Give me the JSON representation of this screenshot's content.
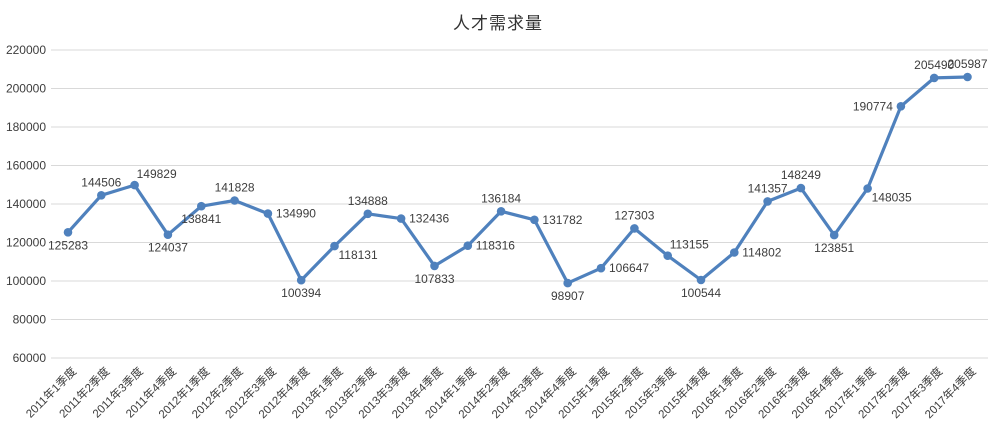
{
  "chart_data": {
    "type": "line",
    "title": "人才需求量",
    "xlabel": "",
    "ylabel": "",
    "legend": "none",
    "grid": "horizontal",
    "x_tick_rotation": -45,
    "ylim": [
      60000,
      220000
    ],
    "ytick_interval": 20000,
    "ytick_labels": [
      "60000",
      "80000",
      "100000",
      "120000",
      "140000",
      "160000",
      "180000",
      "200000",
      "220000"
    ],
    "categories": [
      "2011年1季度",
      "2011年2季度",
      "2011年3季度",
      "2011年4季度",
      "2012年1季度",
      "2012年2季度",
      "2012年3季度",
      "2012年4季度",
      "2013年1季度",
      "2013年2季度",
      "2013年3季度",
      "2013年4季度",
      "2014年1季度",
      "2014年2季度",
      "2014年3季度",
      "2014年4季度",
      "2015年1季度",
      "2015年2季度",
      "2015年3季度",
      "2015年4季度",
      "2016年1季度",
      "2016年2季度",
      "2016年3季度",
      "2016年4季度",
      "2017年1季度",
      "2017年2季度",
      "2017年3季度",
      "2017年4季度"
    ],
    "series": [
      {
        "values": [
          125283,
          144506,
          149829,
          124037,
          138841,
          141828,
          134990,
          100394,
          118131,
          134888,
          132436,
          107833,
          118316,
          136184,
          131782,
          98907,
          106647,
          127303,
          113155,
          100544,
          114802,
          141357,
          148249,
          123851,
          148035,
          190774,
          205490,
          205987
        ],
        "data_label_positions": [
          "below",
          "above",
          "above-right",
          "below",
          "below",
          "above",
          "right",
          "below",
          "below-right",
          "above",
          "right",
          "below",
          "right",
          "above",
          "right",
          "below",
          "right",
          "above",
          "above-right",
          "below",
          "right",
          "above",
          "above",
          "below",
          "below-right",
          "left",
          "above",
          "above"
        ],
        "marker": "circle"
      }
    ],
    "colors": {
      "line": "#4F81BD",
      "marker": "#4F81BD",
      "grid": "#D9D9D9",
      "axis_text": "#3D3D3D",
      "data_label_text": "#3D3D3D",
      "title_text": "#333333",
      "background": "#FFFFFF"
    }
  }
}
